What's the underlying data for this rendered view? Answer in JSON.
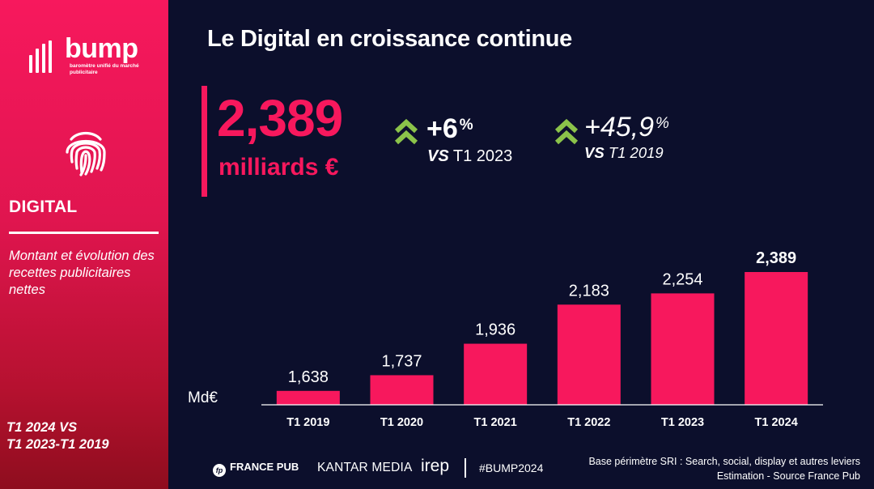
{
  "sidebar": {
    "brand": "bump",
    "brand_tagline": "baromètre unifié du marché publicitaire",
    "section_title": "DIGITAL",
    "description": "Montant et évolution des recettes publicitaires nettes",
    "period_line1": "T1 2024 VS",
    "period_line2": "T1 2023-T1 2019",
    "icon": "fingerprint-icon"
  },
  "title": "Le Digital en croissance continue",
  "kpi": {
    "value": "2,389",
    "unit": "milliards €",
    "delta1": {
      "value": "+6",
      "suffix": "%",
      "vs_prefix": "VS",
      "vs_label": "T1 2023",
      "icon": "double-chevron-up-icon"
    },
    "delta2": {
      "value": "+45,9",
      "suffix": "%",
      "vs_prefix": "VS",
      "vs_label": "T1 2019",
      "icon": "double-chevron-up-icon"
    }
  },
  "chart_unit": "Md€",
  "chart_data": {
    "type": "bar",
    "categories": [
      "T1 2019",
      "T1 2020",
      "T1 2021",
      "T1 2022",
      "T1 2023",
      "T1 2024"
    ],
    "values": [
      1.638,
      1.737,
      1.936,
      2.183,
      2.254,
      2.389
    ],
    "data_labels": [
      "1,638",
      "1,737",
      "1,936",
      "2,183",
      "2,254",
      "2,389"
    ],
    "ylabel": "Md€",
    "ylim": [
      1.55,
      2.4
    ],
    "grid": false,
    "colors": {
      "bar": "#f7185d",
      "axis": "#ffffff",
      "last_label_bold": true
    }
  },
  "footer": {
    "france_pub": "FRANCE PUB",
    "france_pub_mark": "fp",
    "kantar": "KANTAR MEDIA",
    "irep": "irep",
    "hashtag": "#BUMP2024",
    "source_line1": "Base périmètre SRI : Search, social, display et autres leviers",
    "source_line2": "Estimation - Source France Pub"
  },
  "colors": {
    "background": "#0c0f2c",
    "accent": "#f7185d",
    "positive": "#8bc34a"
  }
}
